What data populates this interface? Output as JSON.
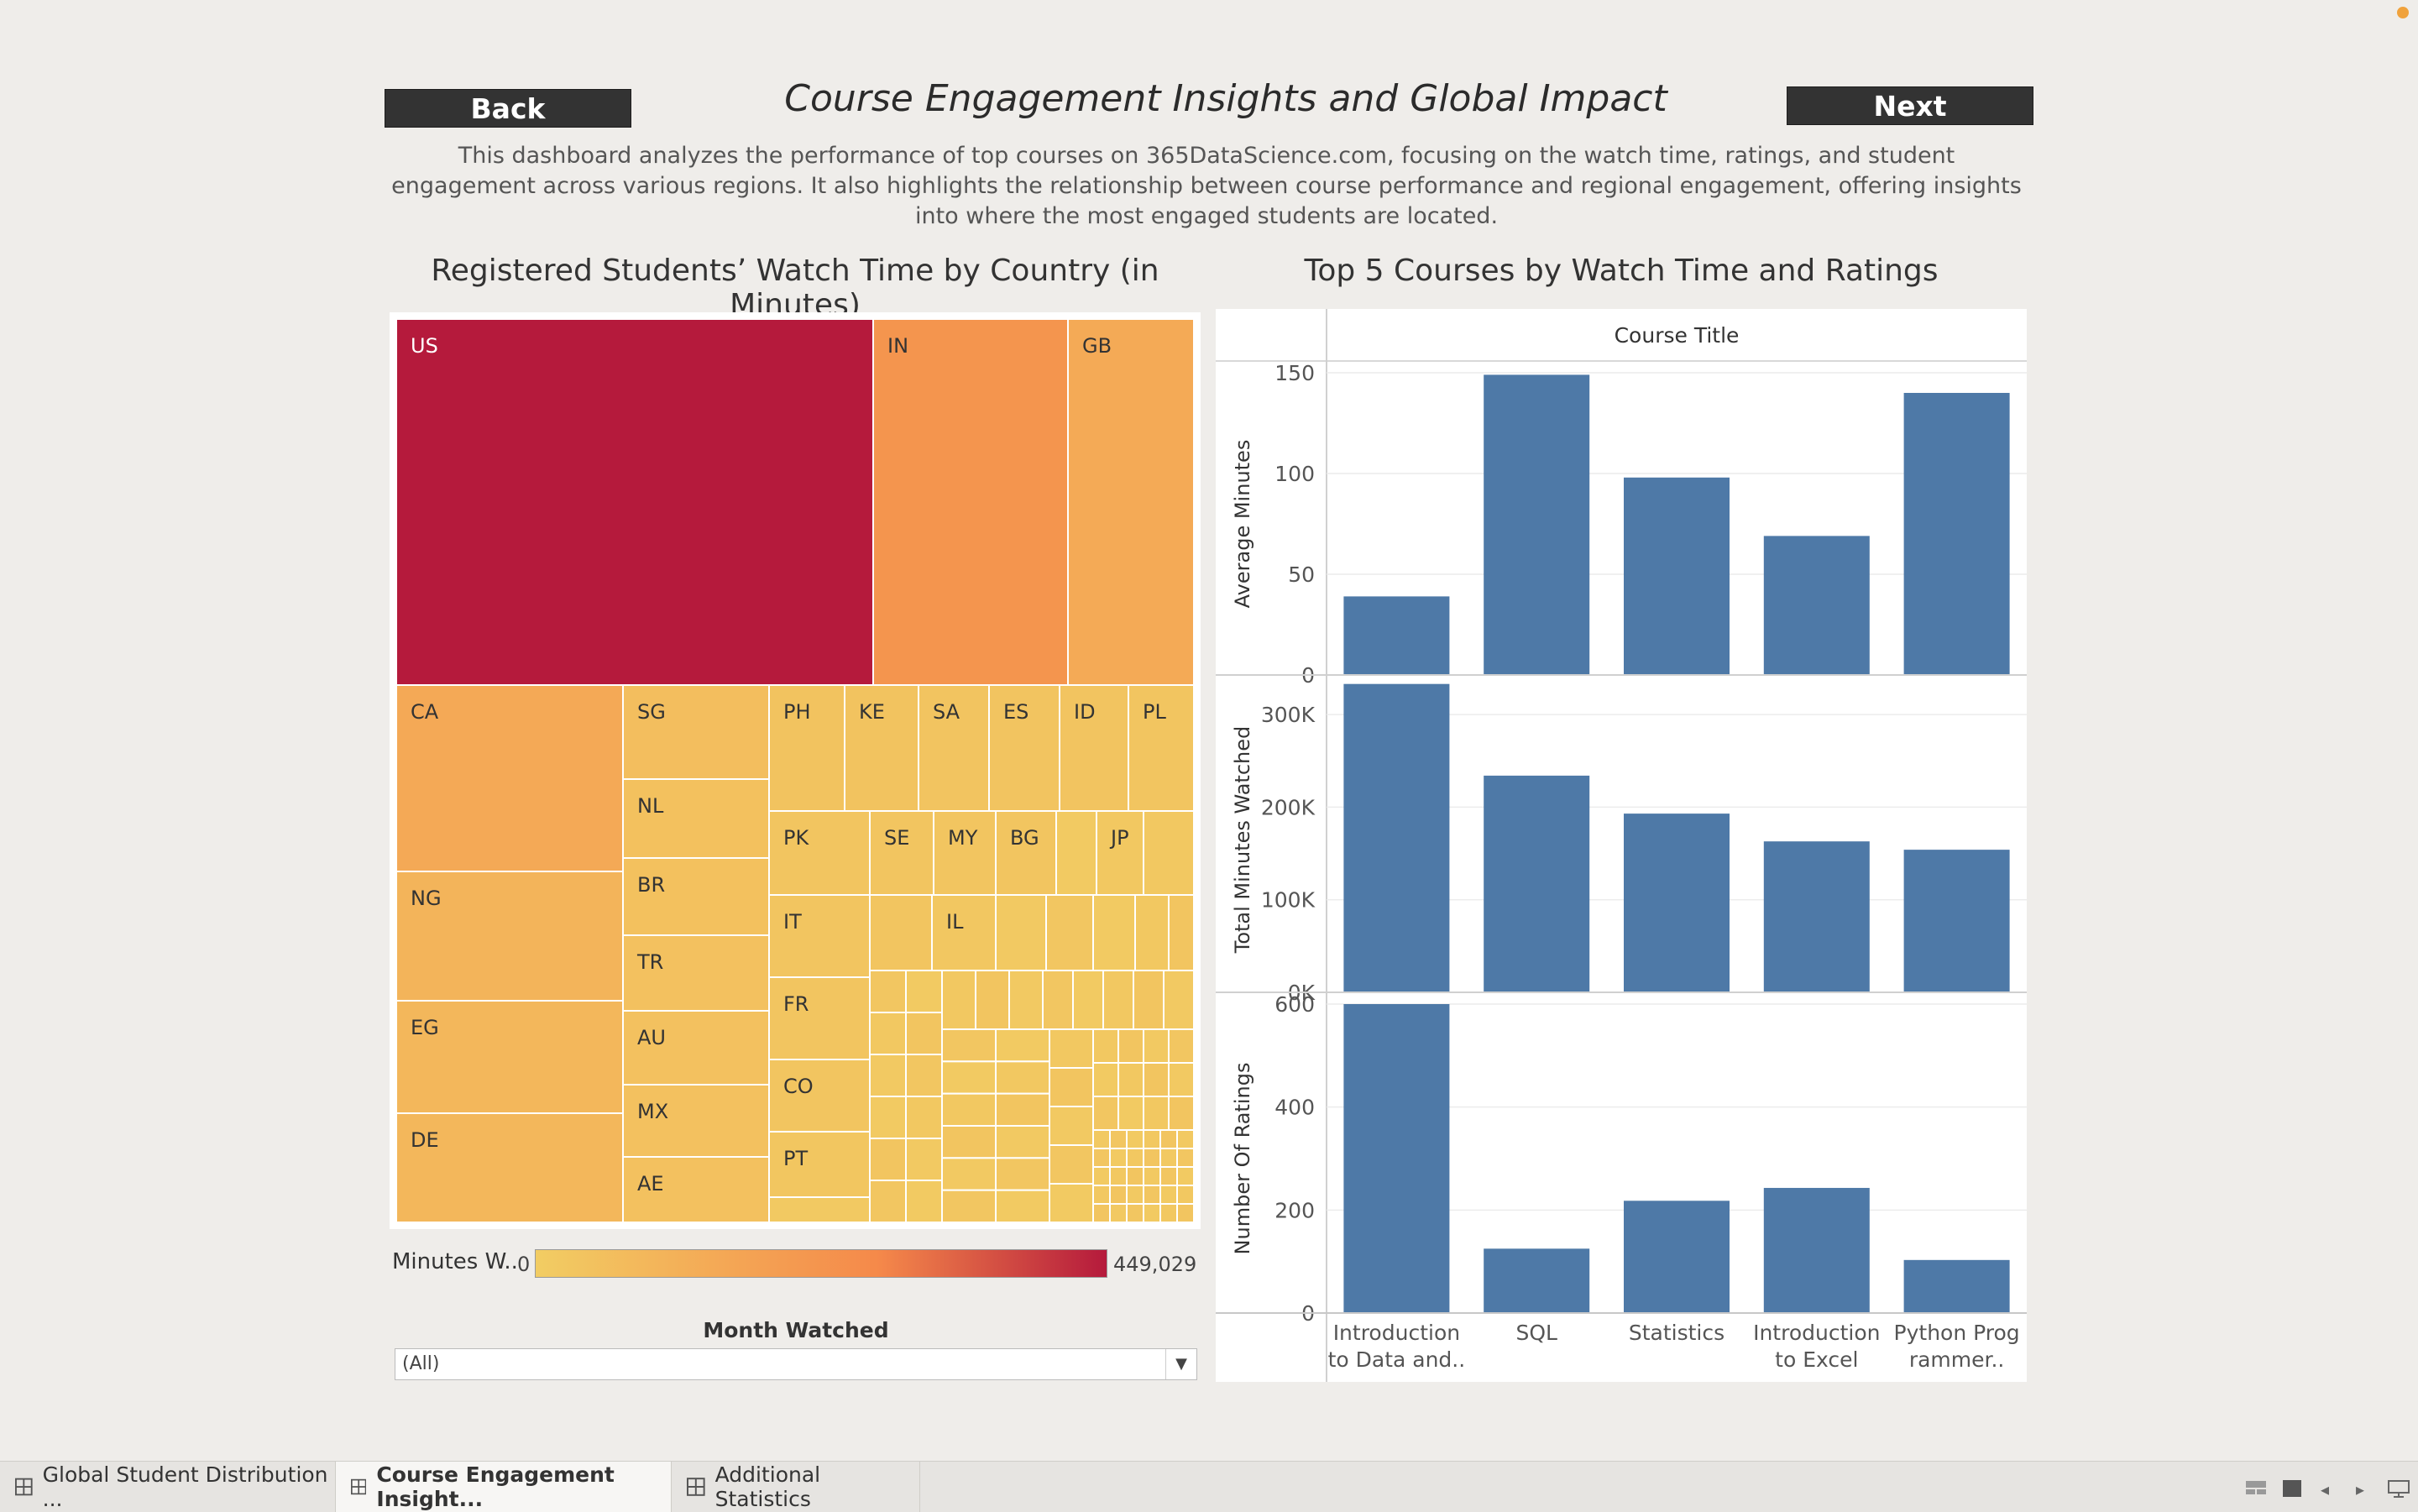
{
  "nav": {
    "back_label": "Back",
    "next_label": "Next"
  },
  "header": {
    "title": "Course Engagement Insights and Global Impact",
    "description": "This dashboard analyzes the performance of top courses on 365DataScience.com, focusing on the watch time, ratings, and student engagement across various regions. It also highlights the relationship between course performance and regional engagement, offering insights into where the most engaged students are located."
  },
  "treemap": {
    "title": "Registered Students’ Watch Time by Country (in Minutes)",
    "legend_label": "Minutes W..",
    "legend_min": "0",
    "legend_max": "449,029",
    "color_low": "#f2cd63",
    "color_mid": "#f5894a",
    "color_high": "#b51a3c"
  },
  "filter": {
    "title": "Month Watched",
    "value": "(All)"
  },
  "bars": {
    "title": "Top 5 Courses by Watch Time and Ratings",
    "header": "Course Title",
    "bar_color": "#4e79a7"
  },
  "chart_data": [
    {
      "type": "treemap",
      "title": "Registered Students’ Watch Time by Country (in Minutes)",
      "labels": [
        "US",
        "IN",
        "GB",
        "CA",
        "NG",
        "EG",
        "DE",
        "SG",
        "NL",
        "BR",
        "TR",
        "AU",
        "MX",
        "AE",
        "PH",
        "KE",
        "SA",
        "ES",
        "ID",
        "PL",
        "PK",
        "SE",
        "MY",
        "BG",
        "JP",
        "IT",
        "IL",
        "FR",
        "CO",
        "PT"
      ],
      "values": [
        449029,
        185000,
        115000,
        120000,
        84000,
        73000,
        72000,
        48000,
        41000,
        41000,
        40000,
        40000,
        39000,
        38000,
        33000,
        32000,
        31000,
        29000,
        29000,
        28000,
        28000,
        25000,
        25000,
        25000,
        18000,
        27000,
        19000,
        26000,
        25000,
        23000
      ],
      "color_range": [
        0,
        449029
      ]
    },
    {
      "type": "bar",
      "categories": [
        "Introduction to Data and..",
        "SQL",
        "Statistics",
        "Introduction to Excel",
        "Python Programmer.."
      ],
      "xlabel": "Course Title",
      "series": [
        {
          "name": "Average Minutes",
          "values": [
            39,
            149,
            98,
            69,
            140
          ],
          "ylim": [
            0,
            150
          ],
          "ticks": [
            "0",
            "50",
            "100",
            "150"
          ]
        },
        {
          "name": "Total Minutes Watched",
          "values": [
            333000,
            234000,
            193000,
            163000,
            154000
          ],
          "ylim": [
            0,
            330000
          ],
          "ticks": [
            "0K",
            "100K",
            "200K",
            "300K"
          ]
        },
        {
          "name": "Number Of Ratings",
          "values": [
            600,
            125,
            218,
            243,
            103
          ],
          "ylim": [
            0,
            600
          ],
          "ticks": [
            "0",
            "200",
            "400",
            "600"
          ]
        }
      ]
    }
  ],
  "tabs": [
    {
      "label": "Global Student Distribution ...",
      "active": false
    },
    {
      "label": "Course Engagement Insight...",
      "active": true
    },
    {
      "label": "Additional Statistics",
      "active": false
    }
  ]
}
